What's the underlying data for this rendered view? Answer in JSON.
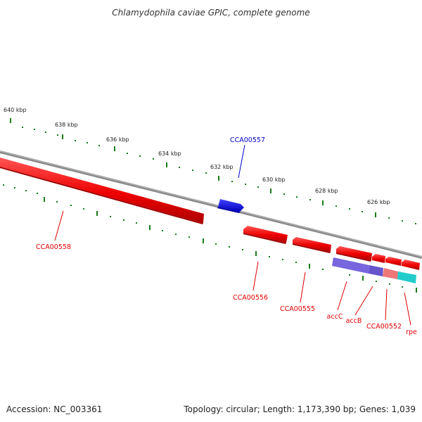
{
  "title": "Chlamydophila caviae GPIC, complete genome",
  "footer": {
    "accession": "Accession: NC_003361",
    "summary": "Topology: circular; Length: 1,173,390 bp; Genes: 1,039"
  },
  "ticks_kbp": [
    "640 kbp",
    "638 kbp",
    "636 kbp",
    "634 kbp",
    "632 kbp",
    "630 kbp",
    "628 kbp",
    "626 kbp"
  ],
  "genes": [
    {
      "label": "CCA00557",
      "strand": "forward"
    },
    {
      "label": "CCA00558",
      "strand": "reverse"
    },
    {
      "label": "CCA00556",
      "strand": "reverse"
    },
    {
      "label": "CCA00555",
      "strand": "reverse"
    },
    {
      "label": "accC",
      "strand": "reverse"
    },
    {
      "label": "accB",
      "strand": "reverse"
    },
    {
      "label": "CCA00552",
      "strand": "reverse"
    },
    {
      "label": "rpe",
      "strand": "reverse"
    }
  ],
  "colors": {
    "forward_gene": "#0000ee",
    "reverse_gene": "#ee0000",
    "backbone": "#888888",
    "tick": "#1a7a1a",
    "cog_purple": "#7766dd",
    "cog_pink": "#ee7777",
    "cog_cyan": "#22cccc"
  }
}
